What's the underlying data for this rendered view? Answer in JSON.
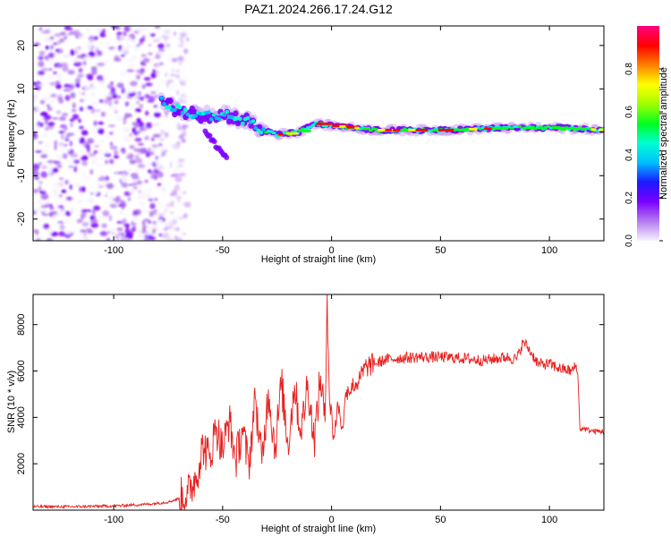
{
  "title": "PAZ1.2024.266.17.24.G12",
  "colors": {
    "snr_line": "#e8201e",
    "frame": "#000000",
    "colormap": [
      "#f7f2fd",
      "#b47bf0",
      "#7b00ff",
      "#1a1aff",
      "#00bfff",
      "#00ffd0",
      "#00ff20",
      "#a0ff00",
      "#ffff00",
      "#ff8000",
      "#ff0000",
      "#ff0080"
    ]
  },
  "chart_data": [
    {
      "type": "heatmap",
      "xlabel": "Height of straight line (km)",
      "ylabel": "Frequency (Hz)",
      "xlim": [
        -137,
        125
      ],
      "ylim": [
        -25,
        24.5
      ],
      "xticks": [
        {
          "value": -100,
          "label": "-100"
        },
        {
          "value": -50,
          "label": "-50"
        },
        {
          "value": 0,
          "label": "0"
        },
        {
          "value": 50,
          "label": "50"
        },
        {
          "value": 100,
          "label": "100"
        }
      ],
      "yticks": [
        {
          "value": -20,
          "label": "-20"
        },
        {
          "value": -10,
          "label": "-10"
        },
        {
          "value": 0,
          "label": "0"
        },
        {
          "value": 10,
          "label": "10"
        },
        {
          "value": 20,
          "label": "20"
        }
      ],
      "noise_region_x": [
        -137,
        -70
      ],
      "ridge": [
        {
          "x": -78,
          "y": 7
        },
        {
          "x": -70,
          "y": 5
        },
        {
          "x": -60,
          "y": 4
        },
        {
          "x": -50,
          "y": 4
        },
        {
          "x": -40,
          "y": 3
        },
        {
          "x": -32,
          "y": 0.5
        },
        {
          "x": -25,
          "y": -0.5
        },
        {
          "x": -15,
          "y": 0
        },
        {
          "x": -8,
          "y": 2
        },
        {
          "x": 0,
          "y": 1.5
        },
        {
          "x": 20,
          "y": 0.5
        },
        {
          "x": 50,
          "y": 0.5
        },
        {
          "x": 80,
          "y": 1
        },
        {
          "x": 105,
          "y": 1
        },
        {
          "x": 125,
          "y": 0.5
        }
      ],
      "branch": [
        {
          "x": -58,
          "y": 0
        },
        {
          "x": -53,
          "y": -3
        },
        {
          "x": -48,
          "y": -6
        }
      ],
      "colorbar": {
        "label": "Normalized spectral amplitude",
        "range": [
          0,
          1
        ],
        "ticks": [
          {
            "value": 0,
            "label": "0.0"
          },
          {
            "value": 0.2,
            "label": "0.2"
          },
          {
            "value": 0.4,
            "label": "0.4"
          },
          {
            "value": 0.6,
            "label": "0.6"
          },
          {
            "value": 0.8,
            "label": "0.8"
          }
        ]
      }
    },
    {
      "type": "line",
      "xlabel": "Height of straight line (km)",
      "ylabel": "SNR (10 * v/v)",
      "xlim": [
        -137,
        125
      ],
      "ylim": [
        0,
        9300
      ],
      "xticks": [
        {
          "value": -100,
          "label": "-100"
        },
        {
          "value": -50,
          "label": "-50"
        },
        {
          "value": 0,
          "label": "0"
        },
        {
          "value": 50,
          "label": "50"
        },
        {
          "value": 100,
          "label": "100"
        }
      ],
      "yticks": [
        {
          "value": 2000,
          "label": "2000"
        },
        {
          "value": 4000,
          "label": "4000"
        },
        {
          "value": 6000,
          "label": "6000"
        },
        {
          "value": 8000,
          "label": "8000"
        }
      ],
      "series": [
        {
          "x": [
            -137,
            -120,
            -100,
            -85,
            -75,
            -70,
            -66,
            -62,
            -59,
            -56,
            -53,
            -50,
            -47,
            -44,
            -41,
            -38,
            -35,
            -32,
            -29,
            -26,
            -23,
            -20,
            -17,
            -14,
            -11,
            -8,
            -5,
            -3,
            -2,
            -1,
            1,
            3,
            5,
            7,
            10,
            13,
            16,
            20,
            25,
            30,
            40,
            50,
            60,
            70,
            80,
            85,
            88,
            95,
            100,
            105,
            110,
            112,
            113,
            114,
            116,
            120,
            125
          ],
          "y": [
            150,
            150,
            180,
            250,
            350,
            500,
            700,
            1500,
            2800,
            2200,
            3600,
            2600,
            3900,
            2100,
            3500,
            1900,
            4800,
            2000,
            5200,
            2600,
            5500,
            2800,
            5400,
            3200,
            5600,
            2900,
            5800,
            3800,
            9300,
            4800,
            3200,
            4500,
            3600,
            5200,
            5300,
            5700,
            6200,
            6300,
            6500,
            6550,
            6600,
            6600,
            6550,
            6450,
            6600,
            6500,
            7300,
            6300,
            6300,
            6100,
            6000,
            6200,
            5900,
            3500,
            3500,
            3400,
            3400
          ]
        }
      ]
    }
  ]
}
